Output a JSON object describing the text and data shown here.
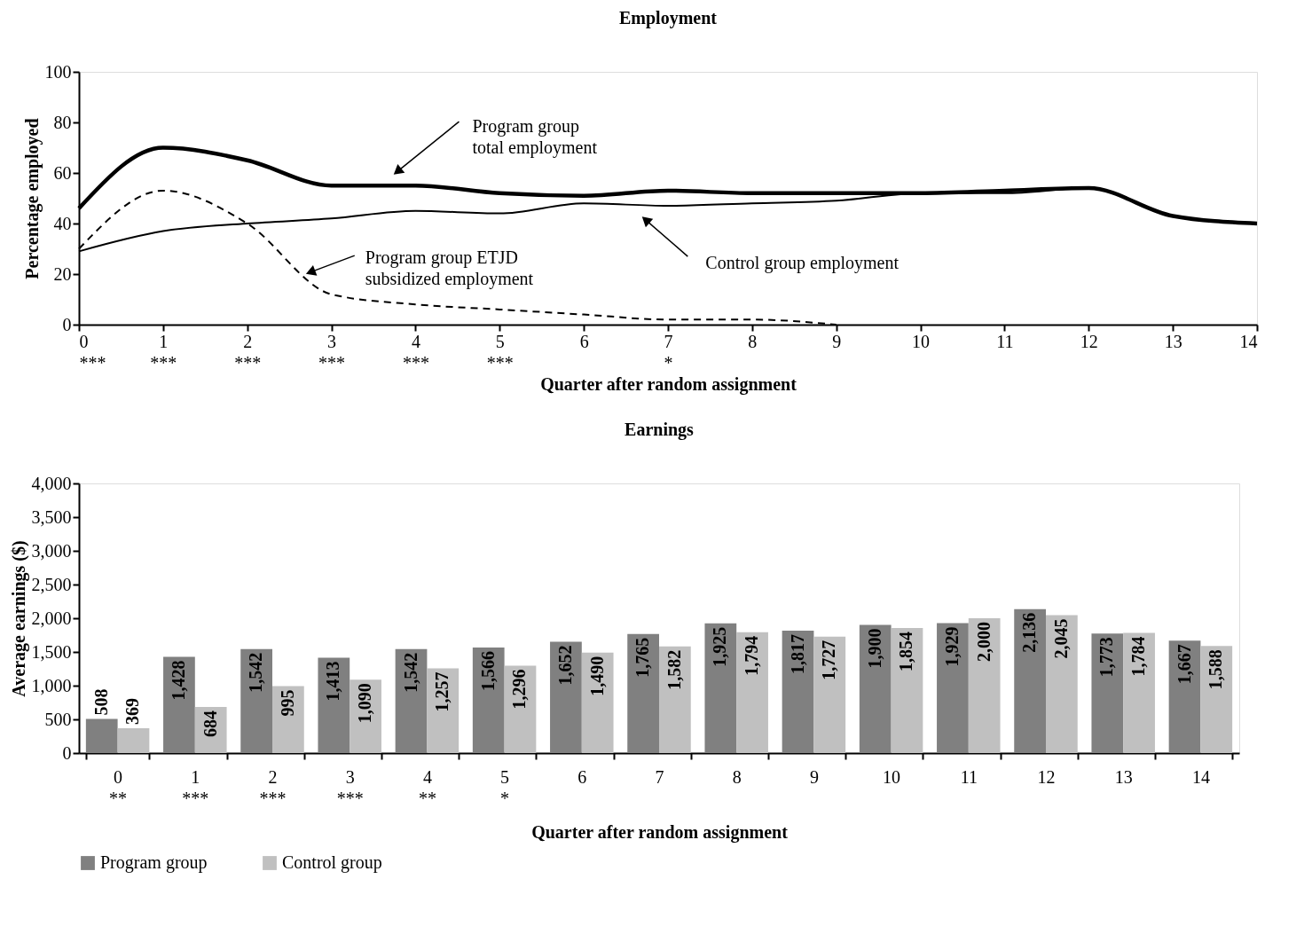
{
  "chart_data": [
    {
      "type": "line",
      "title": "Employment",
      "xlabel": "Quarter after random assignment",
      "ylabel": "Percentage employed",
      "x": [
        0,
        1,
        2,
        3,
        4,
        5,
        6,
        7,
        8,
        9,
        10,
        11,
        12,
        13,
        14
      ],
      "series": [
        {
          "color": "#000000",
          "line_style": "solid",
          "values": [
            46,
            70,
            65,
            55,
            55,
            52,
            51,
            53,
            52,
            52,
            52,
            53,
            54,
            43,
            40
          ]
        },
        {
          "color": "#000000",
          "line_style": "solid",
          "values": [
            29,
            37,
            40,
            42,
            45,
            44,
            48,
            47,
            48,
            49,
            52,
            52,
            54,
            43,
            40
          ]
        },
        {
          "color": "#000000",
          "line_style": "dashed",
          "x": [
            0,
            1,
            2,
            3,
            4,
            5,
            6,
            7,
            8,
            9
          ],
          "values": [
            30,
            53,
            40,
            12,
            8,
            6,
            4,
            2,
            2,
            0
          ]
        }
      ],
      "annotations": [
        {
          "text": "Program group\ntotal employment",
          "x": 3.8,
          "y": 61
        },
        {
          "text": "Control group employment",
          "x": 6.75,
          "y": 41
        },
        {
          "text": "Program group ETJD\nsubsidized employment",
          "x": 2.77,
          "y": 21
        }
      ],
      "xlim": [
        0,
        14
      ],
      "ylim": [
        0,
        100
      ],
      "xticks": [
        {
          "value": 0,
          "label": "0\n***"
        },
        {
          "value": 1,
          "label": "1\n***"
        },
        {
          "value": 2,
          "label": "2\n***"
        },
        {
          "value": 3,
          "label": "3\n***"
        },
        {
          "value": 4,
          "label": "4\n***"
        },
        {
          "value": 5,
          "label": "5\n***"
        },
        6,
        {
          "value": 7,
          "label": "7\n*"
        },
        8,
        9,
        10,
        11,
        12,
        13,
        14
      ],
      "yticks": [
        0,
        20,
        40,
        60,
        80,
        100
      ],
      "grid": false,
      "marker": "none"
    },
    {
      "type": "bar",
      "title": "Earnings",
      "xlabel": "Quarter after random assignment",
      "ylabel": "Average earnings ($)",
      "categories": [
        "0\n**",
        "1\n***",
        "2\n***",
        "3\n***",
        "4\n**",
        "5\n*",
        "6",
        "7",
        "8",
        "9",
        "10",
        "11",
        "12",
        "13",
        "14"
      ],
      "series": [
        {
          "name": "Program group",
          "color": "#808080",
          "values": [
            508,
            1428,
            1542,
            1413,
            1542,
            1566,
            1652,
            1765,
            1925,
            1817,
            1900,
            1929,
            2136,
            1773,
            1667
          ],
          "value_labels": [
            "508",
            "1,428",
            "1,542",
            "1,413",
            "1,542",
            "1,566",
            "1,652",
            "1,765",
            "1,925",
            "1,817",
            "1,900",
            "1,929",
            "2,136",
            "1,773",
            "1,667"
          ]
        },
        {
          "name": "Control group",
          "color": "#c0c0c0",
          "values": [
            369,
            684,
            995,
            1090,
            1257,
            1296,
            1490,
            1582,
            1794,
            1727,
            1854,
            2000,
            2045,
            1784,
            1588
          ],
          "value_labels": [
            "369",
            "684",
            "995",
            "1,090",
            "1,257",
            "1,296",
            "1,490",
            "1,582",
            "1,794",
            "1,727",
            "1,854",
            "2,000",
            "2,045",
            "1,784",
            "1,588"
          ]
        }
      ],
      "ylim": [
        0,
        4000
      ],
      "yticks": [
        0,
        500,
        {
          "value": 1000,
          "label": "1,000"
        },
        {
          "value": 1500,
          "label": "1,500"
        },
        {
          "value": 2000,
          "label": "2,000"
        },
        {
          "value": 2500,
          "label": "2,500"
        },
        {
          "value": 3000,
          "label": "3,000"
        },
        {
          "value": 3500,
          "label": "3,500"
        },
        {
          "value": 4000,
          "label": "4,000"
        }
      ],
      "grid": false,
      "legend": "bottom"
    }
  ]
}
